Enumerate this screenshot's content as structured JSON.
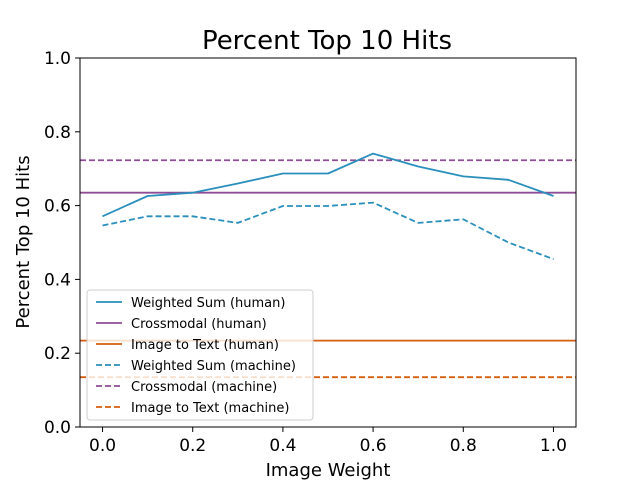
{
  "chart_data": {
    "type": "line",
    "title": "Percent Top 10 Hits",
    "xlabel": "Image Weight",
    "ylabel": "Percent Top 10 Hits",
    "xlim": [
      -0.05,
      1.05
    ],
    "ylim": [
      0.0,
      1.0
    ],
    "xticks": [
      "0.0",
      "0.2",
      "0.4",
      "0.6",
      "0.8",
      "1.0"
    ],
    "yticks": [
      "0.0",
      "0.2",
      "0.4",
      "0.6",
      "0.8",
      "1.0"
    ],
    "grid": false,
    "legend_position": "lower-left",
    "x": [
      0.0,
      0.1,
      0.2,
      0.3,
      0.4,
      0.5,
      0.6,
      0.7,
      0.8,
      0.9,
      1.0
    ],
    "series": [
      {
        "name": "Weighted Sum (human)",
        "kind": "line",
        "color": "#2a8fbd",
        "dash": "solid",
        "values": [
          0.571,
          0.626,
          0.635,
          0.66,
          0.687,
          0.687,
          0.741,
          0.706,
          0.679,
          0.67,
          0.626
        ]
      },
      {
        "name": "Crossmodal (human)",
        "kind": "hline",
        "color": "#8e4d96",
        "dash": "solid",
        "value": 0.635
      },
      {
        "name": "Image to Text (human)",
        "kind": "hline",
        "color": "#d55f0e",
        "dash": "solid",
        "value": 0.234
      },
      {
        "name": "Weighted Sum (machine)",
        "kind": "line",
        "color": "#2a8fbd",
        "dash": "dashed",
        "values": [
          0.546,
          0.571,
          0.571,
          0.553,
          0.599,
          0.599,
          0.608,
          0.553,
          0.563,
          0.5,
          0.455
        ]
      },
      {
        "name": "Crossmodal (machine)",
        "kind": "hline",
        "color": "#8e4d96",
        "dash": "dashed",
        "value": 0.723
      },
      {
        "name": "Image to Text (machine)",
        "kind": "hline",
        "color": "#d55f0e",
        "dash": "dashed",
        "value": 0.135
      }
    ]
  }
}
